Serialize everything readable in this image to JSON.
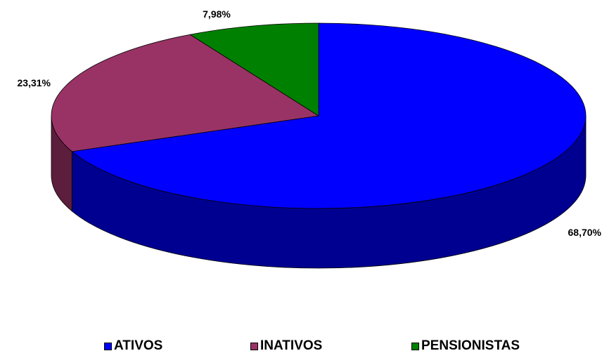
{
  "chart_data": {
    "type": "pie",
    "categories": [
      "ATIVOS",
      "INATIVOS",
      "PENSIONISTAS"
    ],
    "values": [
      68.7,
      23.31,
      7.98
    ],
    "data_labels": [
      "68,70%",
      "23,31%",
      "7,98%"
    ],
    "colors": [
      "#0000ff",
      "#993366",
      "#008000"
    ],
    "side_colors": [
      "#000090",
      "#5c1e3c",
      "#004d00"
    ],
    "legend_position": "bottom",
    "three_d": true
  },
  "legend": {
    "items": [
      {
        "label": "ATIVOS",
        "color": "#0000ff"
      },
      {
        "label": "INATIVOS",
        "color": "#993366"
      },
      {
        "label": "PENSIONISTAS",
        "color": "#008000"
      }
    ]
  }
}
